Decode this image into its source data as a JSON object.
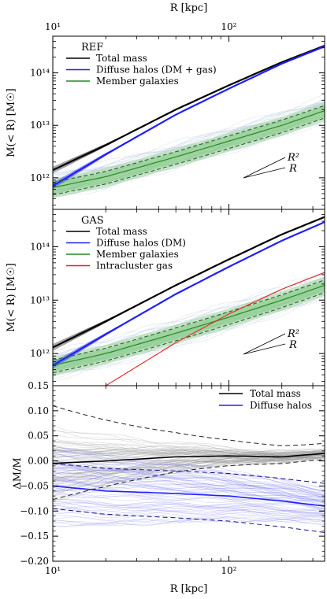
{
  "chart_data": [
    {
      "type": "line",
      "panel": "REF",
      "title": "REF",
      "xlabel": "R [kpc]",
      "ylabel": "M(< R) [M☉]",
      "xscale": "log",
      "yscale": "log",
      "xlim": [
        10,
        350
      ],
      "ylim": [
        250000000000.0,
        500000000000000.0
      ],
      "xticks": [
        "10¹",
        "10²"
      ],
      "yticks": [
        "10¹²",
        "10¹³",
        "10¹⁴"
      ],
      "legend_position": "top-left",
      "annotations": [
        "R²",
        "R"
      ],
      "series": [
        {
          "name": "Total mass",
          "color": "#000000",
          "x": [
            10,
            20,
            50,
            100,
            200,
            350
          ],
          "y": [
            1400000000000.0,
            4200000000000.0,
            20000000000000.0,
            58000000000000.0,
            160000000000000.0,
            330000000000000.0
          ]
        },
        {
          "name": "Diffuse halos (DM + gas)",
          "color": "#1f1fff",
          "x": [
            10,
            20,
            50,
            100,
            200,
            350
          ],
          "y": [
            700000000000.0,
            2800000000000.0,
            16000000000000.0,
            50000000000000.0,
            150000000000000.0,
            320000000000000.0
          ]
        },
        {
          "name": "Member galaxies",
          "color": "#228b22",
          "x": [
            10,
            20,
            50,
            100,
            200,
            350
          ],
          "y": [
            650000000000.0,
            1050000000000.0,
            2500000000000.0,
            5000000000000.0,
            10000000000000.0,
            19000000000000.0
          ]
        }
      ]
    },
    {
      "type": "line",
      "panel": "GAS",
      "title": "GAS",
      "xlabel": "R [kpc]",
      "ylabel": "M(< R) [M☉]",
      "xscale": "log",
      "yscale": "log",
      "xlim": [
        10,
        350
      ],
      "ylim": [
        250000000000.0,
        500000000000000.0
      ],
      "xticks": [
        "10¹",
        "10²"
      ],
      "yticks": [
        "10¹²",
        "10¹³",
        "10¹⁴"
      ],
      "legend_position": "top-left",
      "annotations": [
        "R²",
        "R"
      ],
      "series": [
        {
          "name": "Total mass",
          "color": "#000000",
          "x": [
            10,
            20,
            50,
            100,
            200,
            350
          ],
          "y": [
            1300000000000.0,
            4000000000000.0,
            19000000000000.0,
            58000000000000.0,
            170000000000000.0,
            360000000000000.0
          ]
        },
        {
          "name": "Diffuse halos (DM)",
          "color": "#1f1fff",
          "x": [
            10,
            20,
            50,
            100,
            200,
            350
          ],
          "y": [
            600000000000.0,
            2300000000000.0,
            13000000000000.0,
            42000000000000.0,
            130000000000000.0,
            290000000000000.0
          ]
        },
        {
          "name": "Member galaxies",
          "color": "#228b22",
          "x": [
            10,
            20,
            50,
            100,
            200,
            350
          ],
          "y": [
            600000000000.0,
            1000000000000.0,
            2400000000000.0,
            4800000000000.0,
            10000000000000.0,
            19000000000000.0
          ]
        },
        {
          "name": "Intracluster gas",
          "color": "#e8211a",
          "x": [
            20,
            50,
            100,
            200,
            350
          ],
          "y": [
            250000000000.0,
            1600000000000.0,
            5500000000000.0,
            16000000000000.0,
            33000000000000.0
          ]
        }
      ]
    },
    {
      "type": "line",
      "panel": "residual",
      "xlabel": "R [kpc]",
      "ylabel": "ΔM/M",
      "xscale": "log",
      "yscale": "linear",
      "xlim": [
        10,
        350
      ],
      "ylim": [
        -0.2,
        0.15
      ],
      "xticks": [
        "10¹",
        "10²"
      ],
      "yticks": [
        "−0.20",
        "−0.15",
        "−0.10",
        "−0.05",
        "0.00",
        "0.05",
        "0.10",
        "0.15"
      ],
      "legend_position": "top-right",
      "series": [
        {
          "name": "Total mass",
          "color": "#000000",
          "x": [
            10,
            20,
            50,
            100,
            200,
            350
          ],
          "y": [
            -0.005,
            0.0,
            0.008,
            0.01,
            0.008,
            0.015
          ]
        },
        {
          "name": "Diffuse halos",
          "color": "#1f1fff",
          "x": [
            10,
            20,
            50,
            100,
            200,
            350
          ],
          "y": [
            -0.05,
            -0.06,
            -0.065,
            -0.07,
            -0.08,
            -0.09
          ]
        }
      ]
    }
  ]
}
